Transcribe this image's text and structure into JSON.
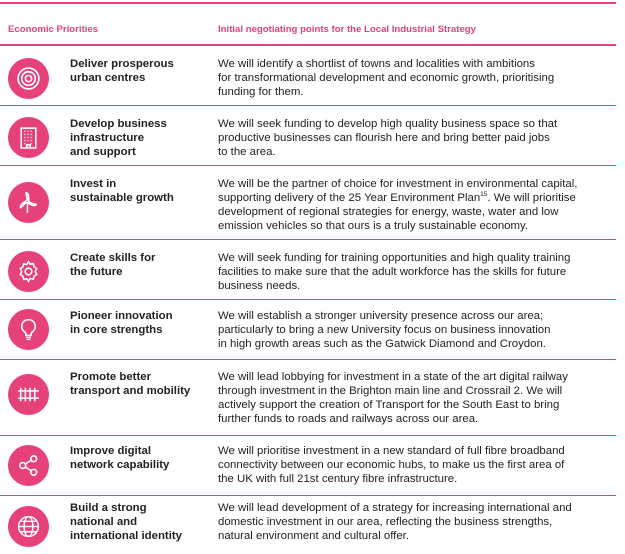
{
  "colors": {
    "accent": "#e7417a",
    "text": "#222222",
    "icon_stroke": "#ffffff"
  },
  "header": {
    "left": "Economic Priorities",
    "right": "Initial negotiating points for the Local Industrial Strategy"
  },
  "rows": [
    {
      "icon": "target-icon",
      "priority": [
        "Deliver prosperous",
        "urban centres"
      ],
      "text": [
        "We will identify a shortlist of towns and localities with ambitions",
        "for transformational development and economic growth, prioritising",
        "funding for them."
      ]
    },
    {
      "icon": "office-building-icon",
      "priority": [
        "Develop business",
        "infrastructure",
        "and support"
      ],
      "text": [
        "We will seek funding to develop high quality business space so that",
        "productive businesses can flourish here and bring better paid jobs",
        "to the area."
      ]
    },
    {
      "icon": "wind-turbine-icon",
      "priority": [
        "Invest in",
        "sustainable growth"
      ],
      "text": [
        "We will be the partner of choice for investment in environmental capital,",
        "supporting delivery of the 25 Year Environment Plan",
        "development of regional strategies for energy, waste, water and low",
        "emission vehicles so that ours is a truly sustainable economy."
      ],
      "footnote": "15",
      "text_after_footnote": ". We will prioritise"
    },
    {
      "icon": "cog-icon",
      "priority": [
        "Create skills for",
        "the future"
      ],
      "text": [
        "We will seek funding for training opportunities and high quality training",
        "facilities to make sure that the adult workforce has the skills for future",
        "business needs."
      ]
    },
    {
      "icon": "lightbulb-icon",
      "priority": [
        "Pioneer innovation",
        "in core strengths"
      ],
      "text": [
        "We will establish a stronger university presence across our area;",
        "particularly to bring a new University focus on business innovation",
        "in high growth areas such as the Gatwick Diamond and Croydon."
      ]
    },
    {
      "icon": "railway-track-icon",
      "priority": [
        "Promote better",
        "transport and mobility"
      ],
      "text": [
        "We will lead lobbying for investment in a state of the art digital railway",
        "through investment in the Brighton main line and Crossrail 2. We will",
        "actively support the creation of Transport for the South East to bring",
        "further funds to roads and railways across our area."
      ]
    },
    {
      "icon": "network-share-icon",
      "priority": [
        "Improve digital",
        "network capability"
      ],
      "text": [
        "We will prioritise investment in a new standard of full fibre broadband",
        "connectivity between our economic hubs, to make us the first area of",
        "the UK with full 21st century fibre infrastructure."
      ]
    },
    {
      "icon": "globe-icon",
      "priority": [
        "Build a strong",
        "national and",
        "international identity"
      ],
      "text": [
        "We will lead development of a strategy for increasing international and",
        "domestic investment in our area, reflecting the business strengths,",
        "natural environment and cultural offer."
      ]
    }
  ]
}
